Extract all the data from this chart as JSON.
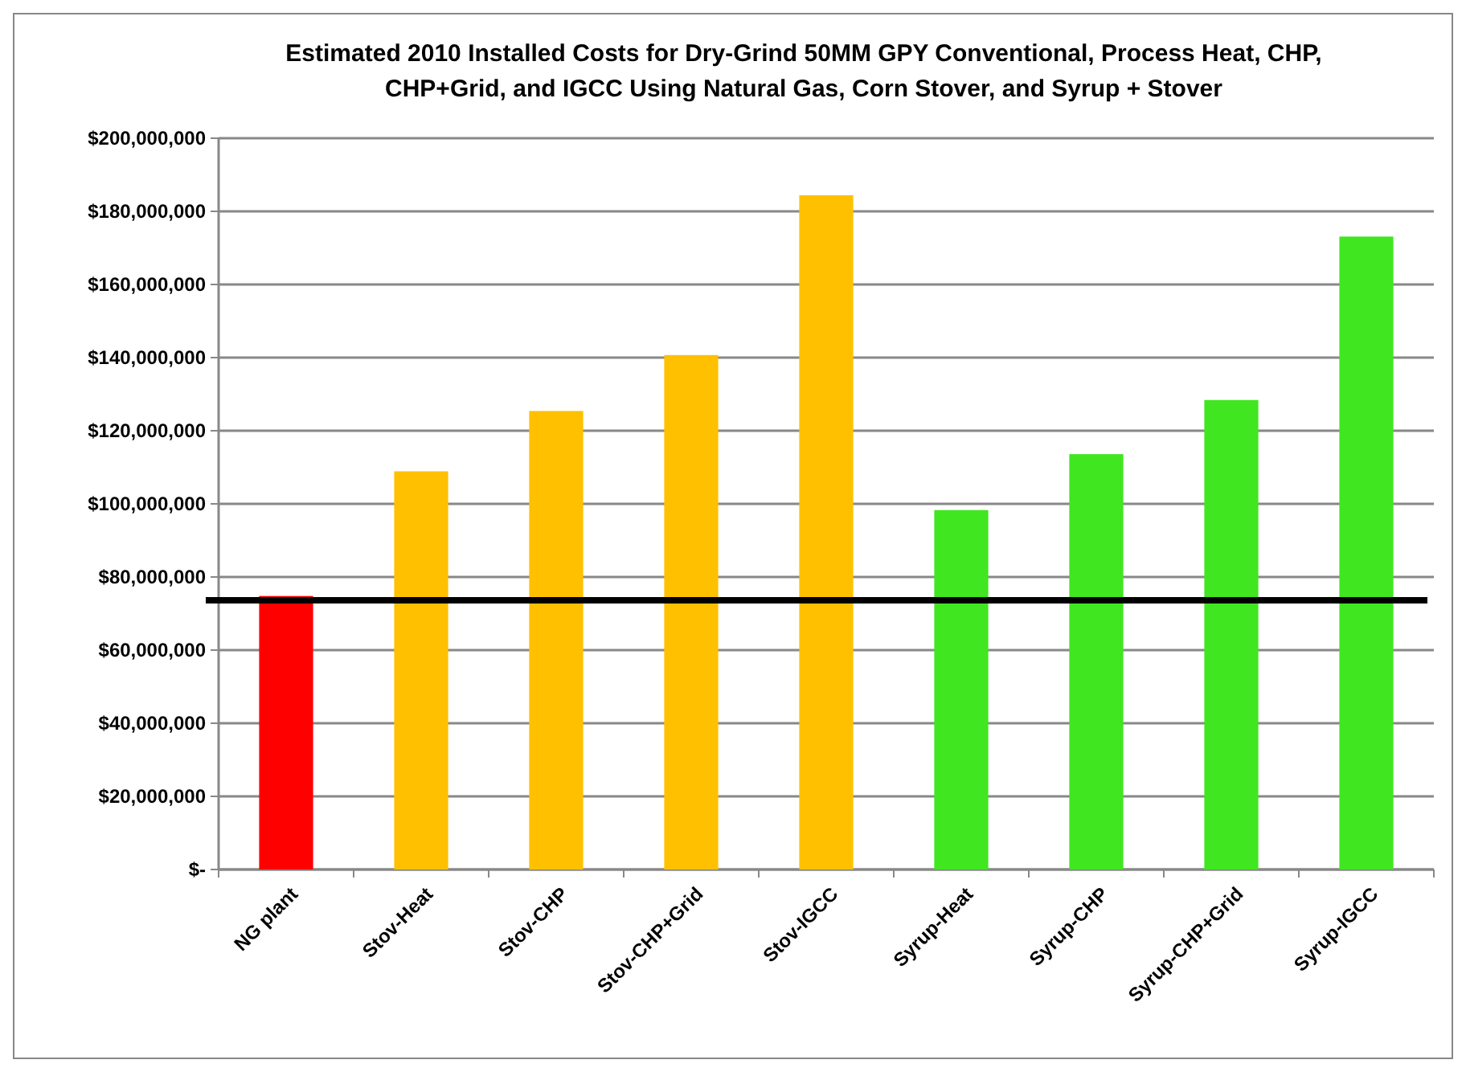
{
  "chart_data": {
    "type": "bar",
    "title": "Estimated 2010 Installed Costs for Dry-Grind 50MM GPY Conventional, Process Heat, CHP, CHP+Grid, and IGCC Using Natural Gas, Corn Stover, and Syrup + Stover",
    "categories": [
      "NG plant",
      "Stov-Heat",
      "Stov-CHP",
      "Stov-CHP+Grid",
      "Stov-IGCC",
      "Syrup-Heat",
      "Syrup-CHP",
      "Syrup-CHP+Grid",
      "Syrup-IGCC"
    ],
    "values": [
      74800000,
      108900000,
      125400000,
      140700000,
      184400000,
      98300000,
      113600000,
      128400000,
      173100000
    ],
    "colors": [
      "#ff0000",
      "#ffc000",
      "#ffc000",
      "#ffc000",
      "#ffc000",
      "#40e620",
      "#40e620",
      "#40e620",
      "#40e620"
    ],
    "ylim": [
      0,
      200000000
    ],
    "yticks": [
      {
        "value": 0,
        "label": "$-"
      },
      {
        "value": 20000000,
        "label": "$20,000,000"
      },
      {
        "value": 40000000,
        "label": "$40,000,000"
      },
      {
        "value": 60000000,
        "label": "$60,000,000"
      },
      {
        "value": 80000000,
        "label": "$80,000,000"
      },
      {
        "value": 100000000,
        "label": "$100,000,000"
      },
      {
        "value": 120000000,
        "label": "$120,000,000"
      },
      {
        "value": 140000000,
        "label": "$140,000,000"
      },
      {
        "value": 160000000,
        "label": "$160,000,000"
      },
      {
        "value": 180000000,
        "label": "$180,000,000"
      },
      {
        "value": 200000000,
        "label": "$200,000,000"
      }
    ],
    "grid": "y",
    "ref_lines": [
      {
        "axis": "y",
        "value": 73600000,
        "color": "#000000"
      }
    ]
  }
}
